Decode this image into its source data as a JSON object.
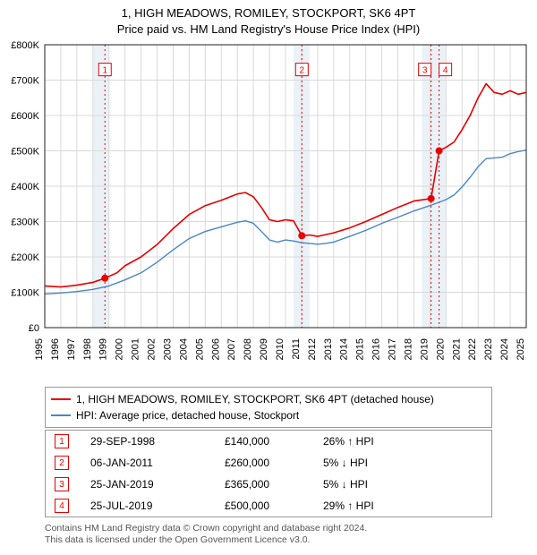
{
  "title_line1": "1, HIGH MEADOWS, ROMILEY, STOCKPORT, SK6 4PT",
  "title_line2": "Price paid vs. HM Land Registry's House Price Index (HPI)",
  "chart": {
    "type": "line",
    "background_color": "#ffffff",
    "grid_color": "#d9d9d9",
    "axis_color": "#222222",
    "ylabel_fontsize": 11,
    "xlabel_fontsize": 11,
    "ylim": [
      0,
      800000
    ],
    "ytick_step": 100000,
    "yticks": [
      "£0",
      "£100K",
      "£200K",
      "£300K",
      "£400K",
      "£500K",
      "£600K",
      "£700K",
      "£800K"
    ],
    "xlim": [
      1995,
      2025
    ],
    "xticks": [
      1995,
      1996,
      1997,
      1998,
      1999,
      2000,
      2001,
      2002,
      2003,
      2004,
      2005,
      2006,
      2007,
      2008,
      2009,
      2010,
      2011,
      2012,
      2013,
      2014,
      2015,
      2016,
      2017,
      2018,
      2019,
      2020,
      2021,
      2022,
      2023,
      2024,
      2025
    ],
    "bands": [
      {
        "from": 1998.0,
        "to": 1999.0,
        "color": "#eaf2f8"
      },
      {
        "from": 2010.5,
        "to": 2011.5,
        "color": "#eaf2f8"
      },
      {
        "from": 2018.5,
        "to": 2020.0,
        "color": "#eaf2f8"
      }
    ],
    "year_lines": [
      {
        "x": 1998.75,
        "color": "#e60000"
      },
      {
        "x": 2011.02,
        "color": "#e60000"
      },
      {
        "x": 2019.07,
        "color": "#e60000"
      },
      {
        "x": 2019.57,
        "color": "#e60000"
      }
    ],
    "markers": [
      {
        "n": 1,
        "x": 1998.75,
        "y": 730000,
        "point_y": 140000
      },
      {
        "n": 2,
        "x": 2011.02,
        "y": 730000,
        "point_y": 260000
      },
      {
        "n": 3,
        "x": 2019.07,
        "y": 730000,
        "point_y": 365000
      },
      {
        "n": 4,
        "x": 2019.57,
        "y": 730000,
        "point_y": 500000
      }
    ],
    "series": [
      {
        "name": "price_paid",
        "color": "#e60000",
        "width": 1.6,
        "points": [
          [
            1995.0,
            118000
          ],
          [
            1996.0,
            115000
          ],
          [
            1997.0,
            120000
          ],
          [
            1998.0,
            128000
          ],
          [
            1998.75,
            140000
          ],
          [
            1999.5,
            155000
          ],
          [
            2000.0,
            175000
          ],
          [
            2001.0,
            200000
          ],
          [
            2002.0,
            235000
          ],
          [
            2003.0,
            280000
          ],
          [
            2004.0,
            320000
          ],
          [
            2005.0,
            345000
          ],
          [
            2006.0,
            360000
          ],
          [
            2007.0,
            378000
          ],
          [
            2007.5,
            382000
          ],
          [
            2008.0,
            370000
          ],
          [
            2008.5,
            340000
          ],
          [
            2009.0,
            305000
          ],
          [
            2009.5,
            300000
          ],
          [
            2010.0,
            305000
          ],
          [
            2010.5,
            302000
          ],
          [
            2011.02,
            260000
          ],
          [
            2011.5,
            262000
          ],
          [
            2012.0,
            258000
          ],
          [
            2012.5,
            263000
          ],
          [
            2013.0,
            268000
          ],
          [
            2014.0,
            282000
          ],
          [
            2015.0,
            300000
          ],
          [
            2016.0,
            320000
          ],
          [
            2017.0,
            340000
          ],
          [
            2018.0,
            358000
          ],
          [
            2019.07,
            365000
          ],
          [
            2019.57,
            500000
          ],
          [
            2020.0,
            510000
          ],
          [
            2020.5,
            525000
          ],
          [
            2021.0,
            560000
          ],
          [
            2021.5,
            600000
          ],
          [
            2022.0,
            650000
          ],
          [
            2022.5,
            690000
          ],
          [
            2023.0,
            665000
          ],
          [
            2023.5,
            660000
          ],
          [
            2024.0,
            670000
          ],
          [
            2024.5,
            660000
          ],
          [
            2025.0,
            665000
          ]
        ]
      },
      {
        "name": "hpi",
        "color": "#4a86c5",
        "width": 1.4,
        "points": [
          [
            1995.0,
            95000
          ],
          [
            1996.0,
            98000
          ],
          [
            1997.0,
            102000
          ],
          [
            1998.0,
            108000
          ],
          [
            1999.0,
            118000
          ],
          [
            2000.0,
            135000
          ],
          [
            2001.0,
            155000
          ],
          [
            2002.0,
            185000
          ],
          [
            2003.0,
            220000
          ],
          [
            2004.0,
            252000
          ],
          [
            2005.0,
            272000
          ],
          [
            2006.0,
            285000
          ],
          [
            2007.0,
            298000
          ],
          [
            2007.5,
            302000
          ],
          [
            2008.0,
            295000
          ],
          [
            2008.5,
            272000
          ],
          [
            2009.0,
            248000
          ],
          [
            2009.5,
            242000
          ],
          [
            2010.0,
            248000
          ],
          [
            2010.5,
            245000
          ],
          [
            2011.0,
            240000
          ],
          [
            2011.5,
            238000
          ],
          [
            2012.0,
            236000
          ],
          [
            2012.5,
            238000
          ],
          [
            2013.0,
            242000
          ],
          [
            2014.0,
            258000
          ],
          [
            2015.0,
            275000
          ],
          [
            2016.0,
            295000
          ],
          [
            2017.0,
            312000
          ],
          [
            2018.0,
            330000
          ],
          [
            2019.0,
            345000
          ],
          [
            2020.0,
            362000
          ],
          [
            2020.5,
            375000
          ],
          [
            2021.0,
            398000
          ],
          [
            2021.5,
            425000
          ],
          [
            2022.0,
            455000
          ],
          [
            2022.5,
            478000
          ],
          [
            2023.0,
            480000
          ],
          [
            2023.5,
            482000
          ],
          [
            2024.0,
            492000
          ],
          [
            2024.5,
            498000
          ],
          [
            2025.0,
            502000
          ]
        ]
      }
    ]
  },
  "legend": {
    "items": [
      {
        "label": "1, HIGH MEADOWS, ROMILEY, STOCKPORT, SK6 4PT (detached house)",
        "color": "#e60000"
      },
      {
        "label": "HPI: Average price, detached house, Stockport",
        "color": "#4a86c5"
      }
    ]
  },
  "transactions": [
    {
      "n": "1",
      "date": "29-SEP-1998",
      "price": "£140,000",
      "pct": "26% ↑ HPI",
      "color": "#e60000"
    },
    {
      "n": "2",
      "date": "06-JAN-2011",
      "price": "£260,000",
      "pct": "5% ↓ HPI",
      "color": "#e60000"
    },
    {
      "n": "3",
      "date": "25-JAN-2019",
      "price": "£365,000",
      "pct": "5% ↓ HPI",
      "color": "#e60000"
    },
    {
      "n": "4",
      "date": "25-JUL-2019",
      "price": "£500,000",
      "pct": "29% ↑ HPI",
      "color": "#e60000"
    }
  ],
  "footnote_line1": "Contains HM Land Registry data © Crown copyright and database right 2024.",
  "footnote_line2": "This data is licensed under the Open Government Licence v3.0."
}
